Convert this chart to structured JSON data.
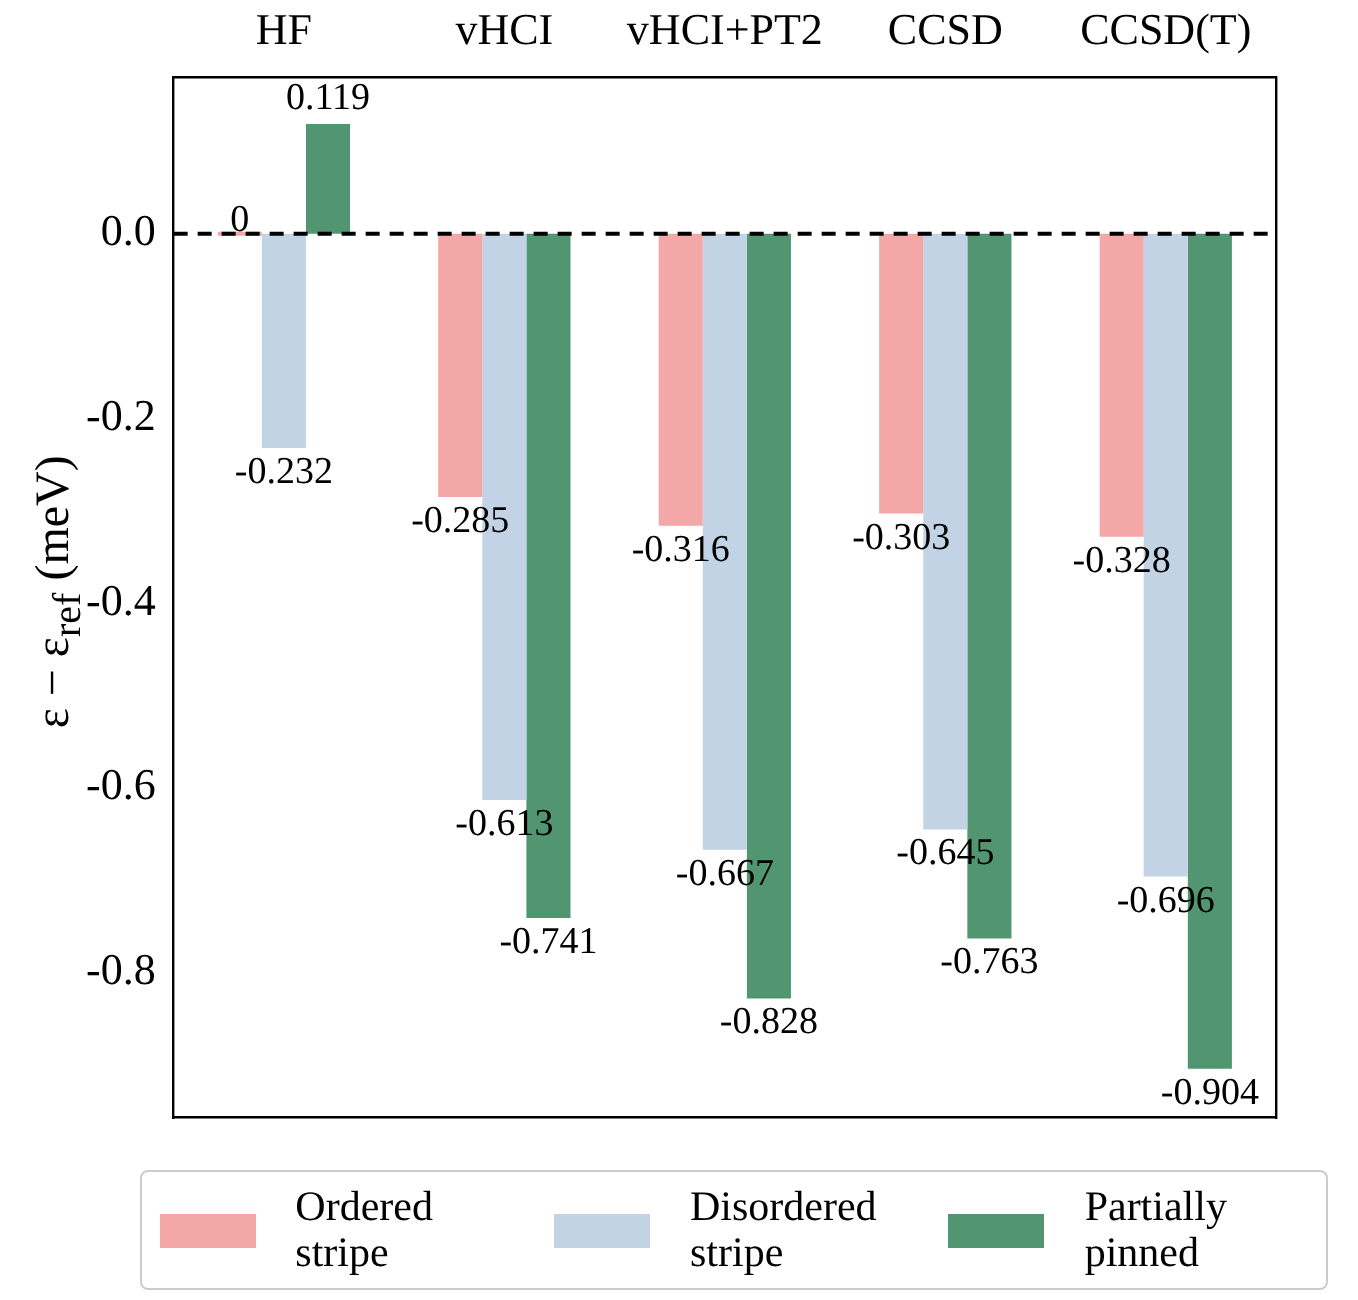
{
  "chart_data": {
    "type": "bar",
    "ylabel": "ε − ε$_{ref}$ (meV)",
    "categories": [
      "HF",
      "vHCI",
      "vHCI+PT2",
      "CCSD",
      "CCSD(T)"
    ],
    "series": [
      {
        "name": "Ordered stripe",
        "color": "#f4a7a7",
        "values": [
          0,
          -0.285,
          -0.316,
          -0.303,
          -0.328
        ]
      },
      {
        "name": "Disordered stripe",
        "color": "#c2d3e6",
        "values": [
          -0.232,
          -0.613,
          -0.667,
          -0.645,
          -0.696
        ]
      },
      {
        "name": "Partially pinned",
        "color": "#519670",
        "values": [
          0.119,
          -0.741,
          -0.828,
          -0.763,
          -0.904
        ]
      }
    ],
    "ylim": [
      -0.957,
      0.17
    ],
    "yticks": [
      {
        "value": -0.8,
        "label": "-0.8"
      },
      {
        "value": -0.6,
        "label": "-0.6"
      },
      {
        "value": -0.4,
        "label": "-0.4"
      },
      {
        "value": -0.2,
        "label": "-0.2"
      },
      {
        "value": 0,
        "label": "0.0"
      }
    ],
    "ref_lines": [
      {
        "axis": "y",
        "value": 0,
        "color": "#000000",
        "line_style": "dashed"
      }
    ],
    "data_labels": true,
    "grid": false,
    "legend": "bottom"
  }
}
